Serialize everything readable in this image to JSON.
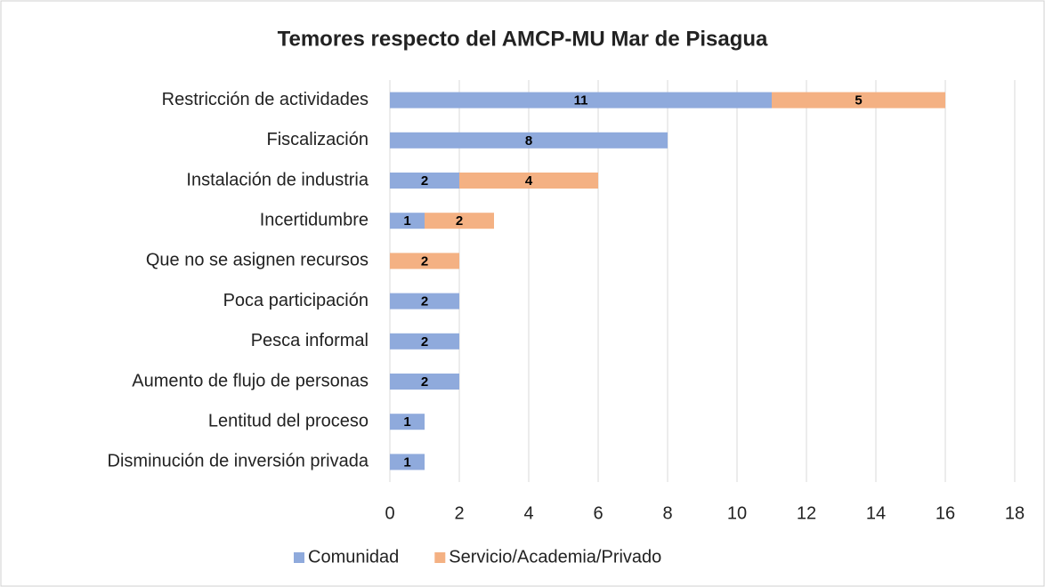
{
  "chart_data": {
    "type": "bar",
    "orientation": "horizontal",
    "stacked": true,
    "title": "Temores respecto del AMCP-MU Mar de Pisagua",
    "categories": [
      "Restricción de actividades",
      "Fiscalización",
      "Instalación de industria",
      "Incertidumbre",
      "Que no se asignen recursos",
      "Poca participación",
      "Pesca informal",
      "Aumento de flujo de personas",
      "Lentitud del proceso",
      "Disminución de inversión privada"
    ],
    "series": [
      {
        "name": "Comunidad",
        "color": "#8faadc",
        "values": [
          11,
          8,
          2,
          1,
          0,
          2,
          2,
          2,
          1,
          1
        ]
      },
      {
        "name": "Servicio/Academia/Privado",
        "color": "#f4b183",
        "values": [
          5,
          0,
          4,
          2,
          2,
          0,
          0,
          0,
          0,
          0
        ]
      }
    ],
    "xlim": [
      0,
      18
    ],
    "xticks": [
      0,
      2,
      4,
      6,
      8,
      10,
      12,
      14,
      16,
      18
    ],
    "grid": true,
    "legend": "bottom"
  }
}
